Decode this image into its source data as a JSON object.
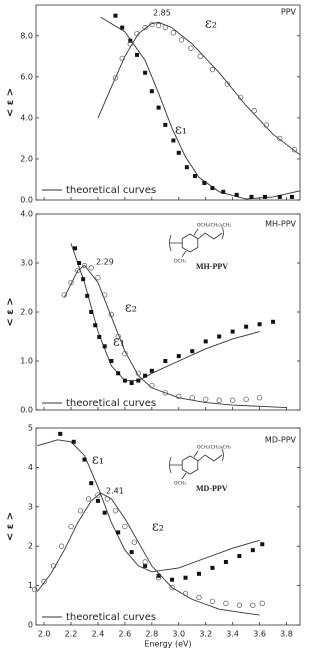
{
  "x_label": "Energy (eV)",
  "chart_data": [
    {
      "type": "scatter",
      "title": "PPV",
      "y_label": "< ε >",
      "peak_label": "2.85",
      "xlim": [
        1.94,
        3.9
      ],
      "ylim": [
        0,
        9.5
      ],
      "yticks": [
        {
          "value": 0,
          "label": "0.0"
        },
        {
          "value": 2,
          "label": "2.0"
        },
        {
          "value": 4,
          "label": "4.0"
        },
        {
          "value": 6,
          "label": "6.0"
        },
        {
          "value": 8,
          "label": "8.0"
        }
      ],
      "series": [
        {
          "name": "ε₁",
          "marker": "square",
          "color": "#111",
          "x": [
            2.53,
            2.58,
            2.64,
            2.69,
            2.75,
            2.8,
            2.85,
            2.9,
            2.96,
            3.0,
            3.06,
            3.12,
            3.19,
            3.25,
            3.33,
            3.43,
            3.54,
            3.64,
            3.75,
            3.84
          ],
          "values": [
            8.98,
            8.4,
            7.76,
            7.07,
            6.2,
            5.3,
            4.5,
            3.66,
            2.9,
            2.3,
            1.6,
            1.17,
            0.83,
            0.58,
            0.4,
            0.25,
            0.15,
            0.15,
            0.15,
            0.15
          ]
        },
        {
          "name": "ε₂",
          "marker": "circle",
          "color": "#555",
          "x": [
            2.53,
            2.58,
            2.64,
            2.69,
            2.75,
            2.8,
            2.85,
            2.9,
            2.96,
            3.02,
            3.09,
            3.16,
            3.25,
            3.36,
            3.46,
            3.56,
            3.65,
            3.75,
            3.86
          ],
          "values": [
            5.95,
            6.9,
            7.6,
            8.1,
            8.4,
            8.55,
            8.5,
            8.4,
            8.15,
            7.8,
            7.4,
            7.0,
            6.35,
            5.65,
            5.0,
            4.35,
            3.65,
            3.0,
            2.45
          ]
        }
      ],
      "curves": {
        "name": "theoretical curves",
        "color": "#333",
        "lines": [
          {
            "x": [
              2.42,
              2.6,
              2.75,
              2.85,
              2.95,
              3.05,
              3.15,
              3.3,
              3.5,
              3.7,
              3.9
            ],
            "values": [
              8.9,
              8.2,
              6.8,
              5.2,
              3.5,
              2.1,
              1.1,
              0.4,
              0.05,
              0.15,
              0.45
            ]
          },
          {
            "x": [
              2.4,
              2.5,
              2.6,
              2.7,
              2.8,
              2.85,
              2.95,
              3.1,
              3.3,
              3.5,
              3.7,
              3.9
            ],
            "values": [
              4.0,
              5.5,
              7.0,
              8.1,
              8.6,
              8.65,
              8.4,
              7.6,
              6.2,
              4.6,
              3.2,
              2.2
            ]
          }
        ]
      }
    },
    {
      "type": "scatter",
      "title": "MH-PPV",
      "y_label": "< ε >",
      "peak_label": "2.29",
      "structure": {
        "label": "MH-PPV",
        "top": "OCH₂(CH₂)₆CH₃",
        "bottom": "OCH₃"
      },
      "xlim": [
        1.94,
        3.9
      ],
      "ylim": [
        0,
        4
      ],
      "yticks": [
        {
          "value": 0,
          "label": "0.0"
        },
        {
          "value": 1,
          "label": "1.0"
        },
        {
          "value": 2,
          "label": "2.0"
        },
        {
          "value": 3,
          "label": "3.0"
        },
        {
          "value": 4,
          "label": "4.0"
        }
      ],
      "series": [
        {
          "name": "ε₁",
          "marker": "square",
          "color": "#111",
          "x": [
            2.23,
            2.26,
            2.29,
            2.32,
            2.35,
            2.38,
            2.41,
            2.45,
            2.5,
            2.55,
            2.6,
            2.65,
            2.7,
            2.75,
            2.8,
            2.9,
            3.0,
            3.1,
            3.2,
            3.3,
            3.4,
            3.5,
            3.6,
            3.7
          ],
          "values": [
            3.3,
            3.0,
            2.67,
            2.33,
            2.0,
            1.73,
            1.49,
            1.3,
            1.0,
            0.75,
            0.6,
            0.55,
            0.6,
            0.7,
            0.8,
            1.0,
            1.1,
            1.2,
            1.4,
            1.5,
            1.6,
            1.7,
            1.75,
            1.8
          ]
        },
        {
          "name": "ε₂",
          "marker": "circle",
          "color": "#555",
          "x": [
            2.15,
            2.2,
            2.25,
            2.3,
            2.35,
            2.4,
            2.45,
            2.5,
            2.55,
            2.6,
            2.7,
            2.8,
            2.9,
            3.0,
            3.1,
            3.2,
            3.3,
            3.4,
            3.5,
            3.6
          ],
          "values": [
            2.35,
            2.6,
            2.85,
            2.95,
            2.9,
            2.7,
            2.35,
            1.95,
            1.5,
            1.15,
            0.75,
            0.5,
            0.35,
            0.28,
            0.25,
            0.22,
            0.2,
            0.2,
            0.22,
            0.25
          ]
        }
      ],
      "curves": {
        "name": "theoretical curves",
        "color": "#333",
        "lines": [
          {
            "x": [
              2.2,
              2.3,
              2.4,
              2.5,
              2.6,
              2.7,
              2.8,
              3.0,
              3.2,
              3.4,
              3.6
            ],
            "values": [
              3.4,
              2.6,
              1.6,
              0.9,
              0.6,
              0.6,
              0.75,
              1.0,
              1.25,
              1.45,
              1.6
            ]
          },
          {
            "x": [
              2.15,
              2.25,
              2.3,
              2.4,
              2.5,
              2.6,
              2.7,
              2.8,
              3.0,
              3.2,
              3.4,
              3.8
            ],
            "values": [
              2.3,
              2.85,
              2.95,
              2.6,
              1.9,
              1.2,
              0.7,
              0.45,
              0.25,
              0.15,
              0.1,
              0.05
            ]
          }
        ]
      }
    },
    {
      "type": "scatter",
      "title": "MD-PPV",
      "y_label": "< ε >",
      "peak_label": "2.41",
      "structure": {
        "label": "MD-PPV",
        "top": "OCH₂(CH₂)₈CH₃",
        "bottom": "OCH₃"
      },
      "xlim": [
        1.94,
        3.9
      ],
      "ylim": [
        0,
        5
      ],
      "yticks": [
        0,
        1,
        2,
        3,
        4,
        5
      ],
      "xticks": [
        {
          "value": 2,
          "label": "2.0"
        },
        2.2,
        2.4,
        2.6,
        2.8,
        {
          "value": 3,
          "label": "3.0"
        },
        3.2,
        3.4,
        3.6,
        3.8
      ],
      "series": [
        {
          "name": "ε₁",
          "marker": "square",
          "color": "#111",
          "x": [
            2.12,
            2.22,
            2.3,
            2.35,
            2.4,
            2.45,
            2.55,
            2.65,
            2.75,
            2.85,
            2.95,
            3.05,
            3.15,
            3.25,
            3.35,
            3.45,
            3.55,
            3.62
          ],
          "values": [
            4.85,
            4.65,
            4.2,
            3.6,
            3.15,
            2.85,
            2.35,
            1.85,
            1.5,
            1.25,
            1.15,
            1.2,
            1.3,
            1.45,
            1.6,
            1.75,
            1.9,
            2.05
          ]
        },
        {
          "name": "ε₂",
          "marker": "circle",
          "color": "#555",
          "x": [
            1.93,
            2.0,
            2.07,
            2.13,
            2.2,
            2.27,
            2.33,
            2.4,
            2.47,
            2.53,
            2.6,
            2.67,
            2.75,
            2.85,
            2.95,
            3.05,
            3.15,
            3.25,
            3.35,
            3.45,
            3.55,
            3.62
          ],
          "values": [
            0.9,
            1.1,
            1.5,
            2.0,
            2.5,
            2.9,
            3.2,
            3.3,
            3.2,
            2.9,
            2.5,
            2.1,
            1.6,
            1.2,
            0.95,
            0.8,
            0.7,
            0.6,
            0.55,
            0.5,
            0.5,
            0.55
          ]
        }
      ],
      "curves": {
        "name": "theoretical curves",
        "color": "#333",
        "lines": [
          {
            "x": [
              1.95,
              2.1,
              2.2,
              2.3,
              2.4,
              2.5,
              2.6,
              2.7,
              2.8,
              3.0,
              3.2,
              3.4,
              3.6
            ],
            "values": [
              4.55,
              4.7,
              4.65,
              4.3,
              3.5,
              2.6,
              1.9,
              1.5,
              1.35,
              1.45,
              1.7,
              1.95,
              2.15
            ]
          },
          {
            "x": [
              1.95,
              2.05,
              2.15,
              2.25,
              2.35,
              2.42,
              2.5,
              2.6,
              2.7,
              2.8,
              2.95,
              3.1,
              3.3,
              3.5,
              3.6
            ],
            "values": [
              0.85,
              1.3,
              1.9,
              2.6,
              3.15,
              3.35,
              3.2,
              2.7,
              2.1,
              1.5,
              0.95,
              0.65,
              0.4,
              0.3,
              0.25
            ]
          }
        ]
      }
    }
  ]
}
